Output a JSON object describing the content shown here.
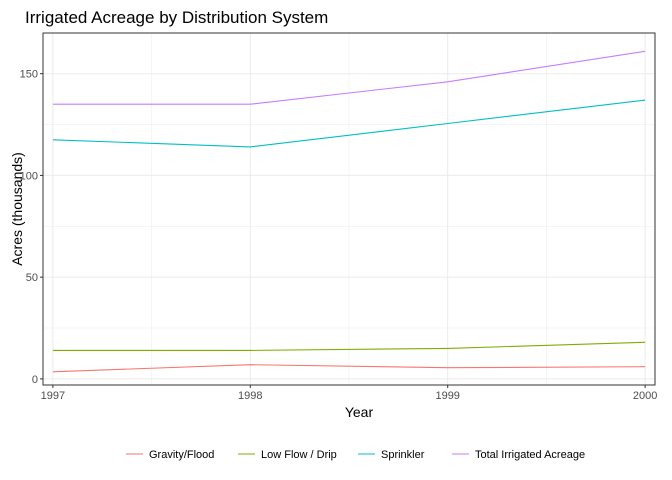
{
  "chart_data": {
    "type": "line",
    "title": "Irrigated Acreage by Distribution System",
    "xlabel": "Year",
    "ylabel": "Acres (thousands)",
    "x": [
      1997,
      1998,
      1999,
      2000
    ],
    "xlim": [
      1996.95,
      2000.05
    ],
    "ylim": [
      -3,
      170
    ],
    "xticks": [
      "1997",
      "1998",
      "1999",
      "2000"
    ],
    "yticks": [
      "0",
      "50",
      "100",
      "150"
    ],
    "grid": true,
    "legend_position": "bottom",
    "series": [
      {
        "name": "Gravity/Flood",
        "color": "#F8766D",
        "values": [
          3.5,
          7.0,
          5.5,
          6.0
        ]
      },
      {
        "name": "Low Flow / Drip",
        "color": "#7CAE00",
        "values": [
          14.0,
          14.0,
          15.0,
          18.0
        ]
      },
      {
        "name": "Sprinkler",
        "color": "#00BFC4",
        "values": [
          117.5,
          114.0,
          125.5,
          137.0
        ]
      },
      {
        "name": "Total Irrigated Acreage",
        "color": "#C77CFF",
        "values": [
          135.0,
          135.0,
          146.0,
          161.0
        ]
      }
    ]
  }
}
